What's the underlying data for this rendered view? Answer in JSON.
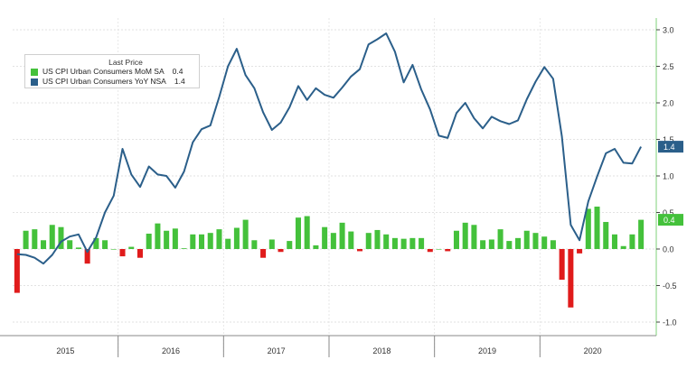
{
  "legend": {
    "title": "Last Price",
    "items": [
      {
        "label": "US CPI Urban Consumers MoM SA",
        "value": "0.4",
        "color": "#44c13b"
      },
      {
        "label": "US CPI Urban Consumers YoY NSA",
        "value": "1.4",
        "color": "#2b5f8a"
      }
    ]
  },
  "chart_data": {
    "type": "bar",
    "x": [
      "2015-01",
      "2015-02",
      "2015-03",
      "2015-04",
      "2015-05",
      "2015-06",
      "2015-07",
      "2015-08",
      "2015-09",
      "2015-10",
      "2015-11",
      "2015-12",
      "2016-01",
      "2016-02",
      "2016-03",
      "2016-04",
      "2016-05",
      "2016-06",
      "2016-07",
      "2016-08",
      "2016-09",
      "2016-10",
      "2016-11",
      "2016-12",
      "2017-01",
      "2017-02",
      "2017-03",
      "2017-04",
      "2017-05",
      "2017-06",
      "2017-07",
      "2017-08",
      "2017-09",
      "2017-10",
      "2017-11",
      "2017-12",
      "2018-01",
      "2018-02",
      "2018-03",
      "2018-04",
      "2018-05",
      "2018-06",
      "2018-07",
      "2018-08",
      "2018-09",
      "2018-10",
      "2018-11",
      "2018-12",
      "2019-01",
      "2019-02",
      "2019-03",
      "2019-04",
      "2019-05",
      "2019-06",
      "2019-07",
      "2019-08",
      "2019-09",
      "2019-10",
      "2019-11",
      "2019-12",
      "2020-01",
      "2020-02",
      "2020-03",
      "2020-04",
      "2020-05",
      "2020-06",
      "2020-07",
      "2020-08",
      "2020-09",
      "2020-10",
      "2020-11",
      "2020-12"
    ],
    "series": [
      {
        "name": "US CPI Urban Consumers MoM SA",
        "color": "#44c13b",
        "negative_color": "#e01b1b",
        "kind": "bar",
        "values": [
          -0.6,
          0.25,
          0.27,
          0.12,
          0.33,
          0.3,
          0.12,
          0.02,
          -0.2,
          0.15,
          0.12,
          0.0,
          -0.1,
          0.03,
          -0.12,
          0.21,
          0.35,
          0.25,
          0.28,
          0.01,
          0.2,
          0.2,
          0.22,
          0.27,
          0.14,
          0.29,
          0.4,
          0.12,
          -0.12,
          0.13,
          -0.04,
          0.11,
          0.43,
          0.45,
          0.05,
          0.3,
          0.22,
          0.36,
          0.24,
          -0.03,
          0.22,
          0.26,
          0.2,
          0.15,
          0.14,
          0.15,
          0.15,
          -0.04,
          0.0,
          -0.03,
          0.25,
          0.36,
          0.33,
          0.12,
          0.13,
          0.27,
          0.11,
          0.15,
          0.25,
          0.22,
          0.17,
          0.12,
          -0.42,
          -0.8,
          -0.06,
          0.55,
          0.58,
          0.37,
          0.2,
          0.04,
          0.2,
          0.4
        ]
      },
      {
        "name": "US CPI Urban Consumers YoY NSA",
        "color": "#2b5f8a",
        "kind": "line",
        "values": [
          -0.07,
          -0.08,
          -0.12,
          -0.2,
          -0.08,
          0.1,
          0.17,
          0.2,
          -0.04,
          0.16,
          0.5,
          0.73,
          1.37,
          1.02,
          0.85,
          1.13,
          1.02,
          1.0,
          0.84,
          1.06,
          1.46,
          1.64,
          1.69,
          2.08,
          2.5,
          2.74,
          2.38,
          2.2,
          1.87,
          1.63,
          1.73,
          1.94,
          2.23,
          2.04,
          2.2,
          2.11,
          2.07,
          2.21,
          2.36,
          2.46,
          2.8,
          2.87,
          2.95,
          2.7,
          2.28,
          2.52,
          2.18,
          1.91,
          1.55,
          1.52,
          1.86,
          2.0,
          1.79,
          1.65,
          1.81,
          1.75,
          1.71,
          1.76,
          2.05,
          2.29,
          2.49,
          2.33,
          1.54,
          0.33,
          0.12,
          0.65,
          0.99,
          1.31,
          1.37,
          1.18,
          1.17,
          1.4
        ]
      }
    ],
    "ylim": [
      -1.0,
      3.0
    ],
    "yticks": [
      -1.0,
      -0.5,
      0.0,
      0.5,
      1.0,
      1.5,
      2.0,
      2.5,
      3.0
    ],
    "ytick_labels": [
      "-1.0",
      "-0.5",
      "0.0",
      "0.5",
      "1.0",
      "1.5",
      "2.0",
      "2.5",
      "3.0"
    ],
    "year_labels": [
      "2015",
      "2016",
      "2017",
      "2018",
      "2019",
      "2020"
    ],
    "last_value_labels": {
      "bar": "0.4",
      "line": "1.4"
    },
    "grid": true,
    "y_axis_side": "right",
    "legend_position": "top-left"
  }
}
